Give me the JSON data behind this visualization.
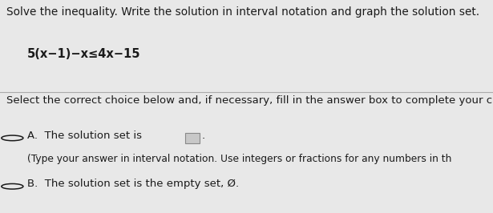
{
  "background_top": "#e8e8e8",
  "background_bottom": "#d0d0d0",
  "title_line": "Solve the inequality. Write the solution in interval notation and graph the solution set.",
  "equation": "5(x−1)−x≤4x−15",
  "select_text": "Select the correct choice below and, if necessary, fill in the answer box to complete your choi",
  "option_a_prefix": "A.  The solution set is",
  "option_a_suffix": ".",
  "option_a_sub": "(Type your answer in interval notation. Use integers or fractions for any numbers in th",
  "option_b_prefix": "B.  The solution set is the empty set, Ø.",
  "text_color": "#1a1a1a",
  "circle_color": "#1a1a1a",
  "box_fill": "#c8c8c8",
  "box_edge": "#888888",
  "divider_color": "#aaaaaa",
  "font_size_title": 9.8,
  "font_size_eq": 10.5,
  "font_size_body": 9.5,
  "font_size_sub": 8.8
}
